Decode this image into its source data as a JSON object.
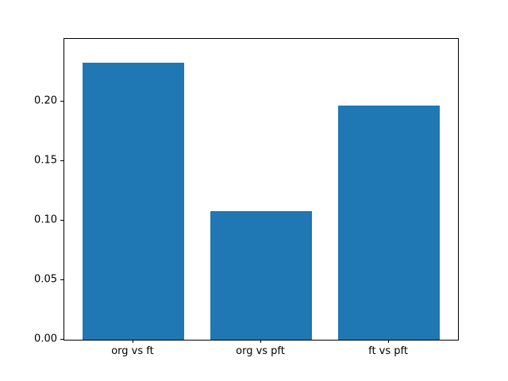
{
  "chart_data": {
    "type": "bar",
    "categories": [
      "org vs ft",
      "org vs pft",
      "ft vs pft"
    ],
    "values": [
      0.233,
      0.108,
      0.197
    ],
    "bar_color": "#1f77b4",
    "yticks": [
      "0.00",
      "0.05",
      "0.10",
      "0.15",
      "0.20"
    ],
    "ytick_values": [
      0.0,
      0.05,
      0.1,
      0.15,
      0.2
    ],
    "ylim": [
      0,
      0.2527
    ],
    "xlim": [
      -0.54,
      2.54
    ],
    "bar_width_data": 0.8,
    "title": "",
    "xlabel": "",
    "ylabel": "",
    "grid": false,
    "legend": false
  }
}
